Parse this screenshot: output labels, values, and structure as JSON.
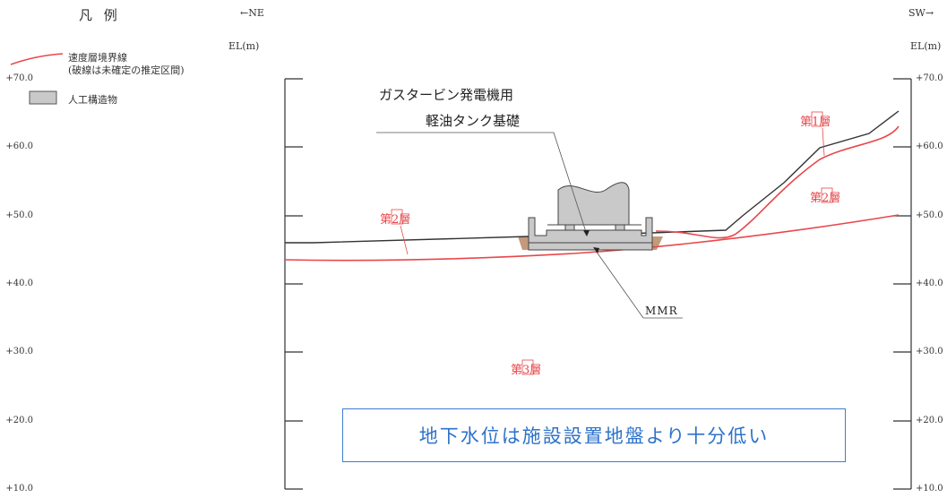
{
  "legend": {
    "title": "凡 例",
    "boundary_label_line1": "速度層境界線",
    "boundary_label_line2": "(破線は未確定の推定区間)",
    "structure_label": "人工構造物",
    "boundary_color": "#e8474b",
    "structure_color": "#c9c9c9"
  },
  "directions": {
    "left": "←NE",
    "right": "SW→"
  },
  "axis": {
    "unit_label": "EL(m)",
    "ticks": [
      "+70.0",
      "+60.0",
      "+50.0",
      "+40.0",
      "+30.0",
      "+20.0",
      "+10.0"
    ]
  },
  "annotations": {
    "facility_line1": "ガスタービン発電機用",
    "facility_line2": "軽油タンク基礎",
    "mmr": "MMR"
  },
  "layers": {
    "layer1": "第1層",
    "layer2_left": "第2層",
    "layer2_right": "第2層",
    "layer3": "第3層"
  },
  "note": "地下水位は施設設置地盤より十分低い"
}
